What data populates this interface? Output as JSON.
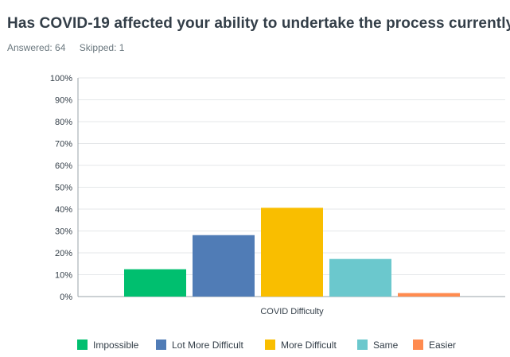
{
  "question": {
    "title": "Has COVID-19 affected your ability to undertake the process currently.",
    "answered": "Answered: 64",
    "skipped": "Skipped: 1"
  },
  "chart_data": {
    "type": "bar",
    "categories": [
      "COVID Difficulty"
    ],
    "series": [
      {
        "name": "Impossible",
        "values": [
          12.5
        ],
        "color": "#00bf6f"
      },
      {
        "name": "Lot More Difficult",
        "values": [
          28.1
        ],
        "color": "#507cb6"
      },
      {
        "name": "More Difficult",
        "values": [
          40.6
        ],
        "color": "#f9be00"
      },
      {
        "name": "Same",
        "values": [
          17.2
        ],
        "color": "#6bc8cd"
      },
      {
        "name": "Easier",
        "values": [
          1.6
        ],
        "color": "#ff8b4f"
      }
    ],
    "xlabel": "COVID Difficulty",
    "ylabel": "",
    "ylim": [
      0,
      100
    ],
    "yticks": [
      "0%",
      "10%",
      "20%",
      "30%",
      "40%",
      "50%",
      "60%",
      "70%",
      "80%",
      "90%",
      "100%"
    ],
    "grid": true,
    "legend": "bottom"
  }
}
